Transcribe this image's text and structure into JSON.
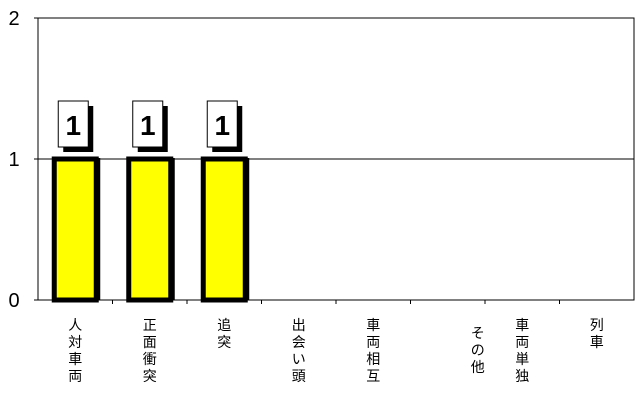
{
  "chart_data": {
    "type": "bar",
    "categories": [
      [
        "人",
        "対",
        "車",
        "両"
      ],
      [
        "正",
        "面",
        "衝",
        "突"
      ],
      [
        "追",
        "突"
      ],
      [
        "出",
        "会",
        "い",
        "頭"
      ],
      [
        "車",
        "両",
        "相",
        "互"
      ],
      [
        "そ",
        "の",
        "他"
      ],
      [
        "車",
        "両",
        "単",
        "独"
      ],
      [
        "列",
        "車"
      ]
    ],
    "values": [
      1,
      1,
      1,
      null,
      null,
      null,
      null,
      null
    ],
    "data_labels": [
      "1",
      "1",
      "1",
      "",
      "",
      "",
      "",
      ""
    ],
    "yticks": [
      "0",
      "1",
      "2"
    ],
    "ylim": [
      0,
      2
    ],
    "grid": true,
    "colors": {
      "bar_fill": "#ffff00",
      "bar_stroke": "#000000",
      "label_box": "#ffffff"
    }
  }
}
